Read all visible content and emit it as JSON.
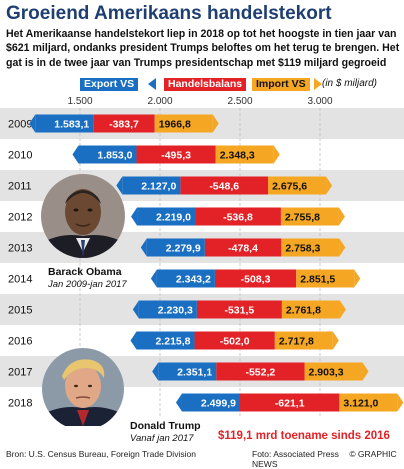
{
  "header": {
    "title": "Groeiend Amerikaans handelstekort",
    "intro": "Het Amerikaanse handelstekort liep in 2018 op tot het hoogste in tien jaar van $621 miljard, ondanks president Trumps beloftes om het terug te brengen. Het gat is in de twee jaar van Trumps presidentschap met $119 miljard gegroeid"
  },
  "legend": {
    "exports": "Export VS",
    "balance": "Handelsbalans",
    "imports": "Import VS",
    "unit": "(in $ miljard)"
  },
  "colors": {
    "exports": "#1a6fc2",
    "balance": "#e22227",
    "imports": "#f5a623",
    "title": "#1f3f73",
    "rowShade": "#e3e3e3"
  },
  "chart_data": {
    "type": "bar",
    "categories": [
      "2009",
      "2010",
      "2011",
      "2012",
      "2013",
      "2014",
      "2015",
      "2016",
      "2017",
      "2018"
    ],
    "series": [
      {
        "name": "Export VS",
        "values": [
          1583.1,
          1853.0,
          2127.0,
          2219.0,
          2279.9,
          2343.2,
          2230.3,
          2215.8,
          2351.1,
          2499.9
        ],
        "labels": [
          "1.583,1",
          "1.853,0",
          "2.127,0",
          "2.219,0",
          "2.279,9",
          "2.343,2",
          "2.230,3",
          "2.215,8",
          "2.351,1",
          "2.499,9"
        ]
      },
      {
        "name": "Handelsbalans",
        "values": [
          -383.7,
          -495.3,
          -548.6,
          -536.8,
          -478.4,
          -508.3,
          -531.5,
          -502.0,
          -552.2,
          -621.1
        ],
        "labels": [
          "-383,7",
          "-495,3",
          "-548,6",
          "-536,8",
          "-478,4",
          "-508,3",
          "-531,5",
          "-502,0",
          "-552,2",
          "-621,1"
        ]
      },
      {
        "name": "Import VS",
        "values": [
          1966.8,
          2348.3,
          2675.6,
          2755.8,
          2758.3,
          2851.5,
          2761.8,
          2717.8,
          2903.3,
          3121.0
        ],
        "labels": [
          "1966,8",
          "2.348,3",
          "2.675,6",
          "2.755,8",
          "2.758,3",
          "2.851,5",
          "2.761,8",
          "2.717,8",
          "2.903,3",
          "3.121,0"
        ]
      }
    ],
    "x_ticks": [
      1500,
      2000,
      2500,
      3000
    ],
    "x_tick_labels": [
      "1.500",
      "2.000",
      "2.500",
      "3.000"
    ],
    "xlim": [
      1500,
      3000
    ],
    "grid": true
  },
  "portraits": {
    "obama": {
      "name": "Barack Obama",
      "term": "Jan 2009-jan 2017"
    },
    "trump": {
      "name": "Donald Trump",
      "term": "Vanaf jan 2017"
    }
  },
  "footer": {
    "source": "Bron: U.S. Census Bureau, Foreign Trade Division",
    "credit": "Foto: Associated Press",
    "brand": "© GRAPHIC NEWS",
    "highlight": "$119,1 mrd toename sinds 2016"
  }
}
